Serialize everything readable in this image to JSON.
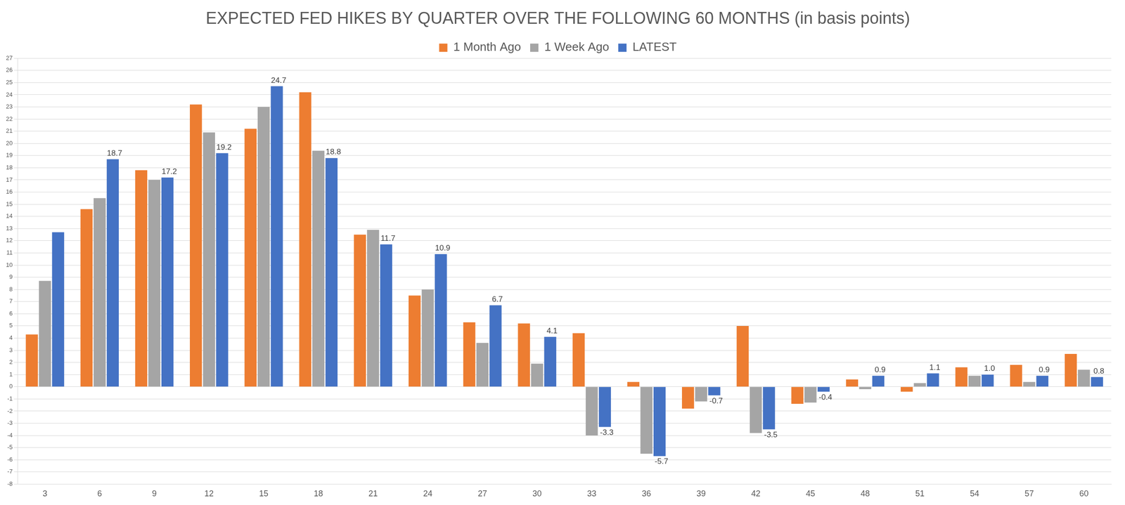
{
  "chart_data": {
    "type": "bar",
    "title": "EXPECTED FED HIKES BY QUARTER OVER THE FOLLOWING 60 MONTHS (in basis points)",
    "categories": [
      3,
      6,
      9,
      12,
      15,
      18,
      21,
      24,
      27,
      30,
      33,
      36,
      39,
      42,
      45,
      48,
      51,
      54,
      57,
      60
    ],
    "series": [
      {
        "name": "1 Month Ago",
        "color": "#ED7D31",
        "values": [
          4.3,
          14.6,
          17.8,
          23.2,
          21.2,
          24.2,
          12.5,
          7.5,
          5.3,
          5.2,
          4.4,
          0.4,
          -1.8,
          5.0,
          -1.4,
          0.6,
          -0.4,
          1.6,
          1.8,
          2.7
        ]
      },
      {
        "name": "1 Week Ago",
        "color": "#A5A5A5",
        "values": [
          8.7,
          15.5,
          17.0,
          20.9,
          23.0,
          19.4,
          12.9,
          8.0,
          3.6,
          1.9,
          -4.0,
          -5.5,
          -1.2,
          -3.8,
          -1.3,
          -0.2,
          0.3,
          0.9,
          0.4,
          1.4
        ]
      },
      {
        "name": "LATEST",
        "color": "#4472C4",
        "data_labels": true,
        "values": [
          12.7,
          18.7,
          17.2,
          19.2,
          24.7,
          18.8,
          11.7,
          10.9,
          6.7,
          4.1,
          -3.3,
          -5.7,
          -0.7,
          -3.5,
          -0.4,
          0.9,
          1.1,
          1.0,
          0.9,
          0.8
        ],
        "value_labels": [
          null,
          "18.7",
          "17.2",
          "19.2",
          "24.7",
          "18.8",
          "11.7",
          "10.9",
          "6.7",
          "4.1",
          "-3.3",
          "-5.7",
          "-0.7",
          "-3.5",
          "-0.4",
          "0.9",
          "1.1",
          "1.0",
          "0.9",
          "0.8"
        ]
      }
    ],
    "ylim": [
      -8,
      27
    ],
    "yticks": [
      -8,
      -7,
      -6,
      -5,
      -4,
      -3,
      -2,
      -1,
      0,
      1,
      2,
      3,
      4,
      5,
      6,
      7,
      8,
      9,
      10,
      11,
      12,
      13,
      14,
      15,
      16,
      17,
      18,
      19,
      20,
      21,
      22,
      23,
      24,
      25,
      26,
      27
    ],
    "grid": true,
    "legend": "top"
  }
}
